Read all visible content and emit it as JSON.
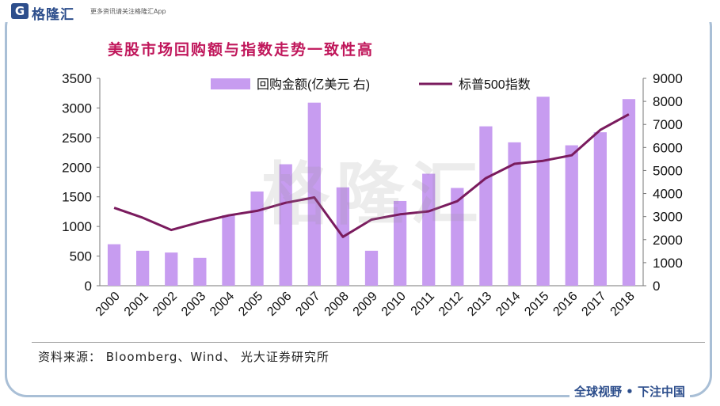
{
  "header": {
    "logo_letter": "G",
    "logo_name": "格隆汇",
    "logo_sub": "更多资讯请关注格隆汇App"
  },
  "title": "美股市场回购额与指数走势一致性高",
  "watermark": "格隆汇",
  "source": "资料来源： Bloomberg、Wind、 光大证券研究所",
  "bottom_tag": "全球视野 • 下注中国",
  "colors": {
    "bar": "#c79cf0",
    "line": "#7a1b5e",
    "title": "#c0175b",
    "frame": "#a9bfd6"
  },
  "chart_data": {
    "type": "bar",
    "categories": [
      "2000",
      "2001",
      "2002",
      "2003",
      "2004",
      "2005",
      "2006",
      "2007",
      "2008",
      "2009",
      "2010",
      "2011",
      "2012",
      "2013",
      "2014",
      "2015",
      "2016",
      "2017",
      "2018"
    ],
    "series": [
      {
        "name": "回购金额(亿美元 右)",
        "type": "bar",
        "axis": "left",
        "values": [
          700,
          590,
          560,
          470,
          1190,
          1590,
          2050,
          3090,
          1660,
          590,
          1430,
          1890,
          1650,
          2690,
          2420,
          3190,
          2370,
          2590,
          3150
        ]
      },
      {
        "name": "标普500指数",
        "type": "line",
        "axis": "right",
        "values": [
          3380,
          2950,
          2420,
          2760,
          3050,
          3250,
          3600,
          3830,
          2120,
          2870,
          3100,
          3230,
          3670,
          4670,
          5290,
          5420,
          5660,
          6760,
          7440
        ]
      }
    ],
    "y_left": {
      "ylim": [
        0,
        3500
      ],
      "ticks": [
        0,
        500,
        1000,
        1500,
        2000,
        2500,
        3000,
        3500
      ]
    },
    "y_right": {
      "ylim": [
        0,
        9000
      ],
      "ticks": [
        0,
        1000,
        2000,
        3000,
        4000,
        5000,
        6000,
        7000,
        8000,
        9000
      ]
    },
    "legend_position": "top",
    "grid": false
  }
}
